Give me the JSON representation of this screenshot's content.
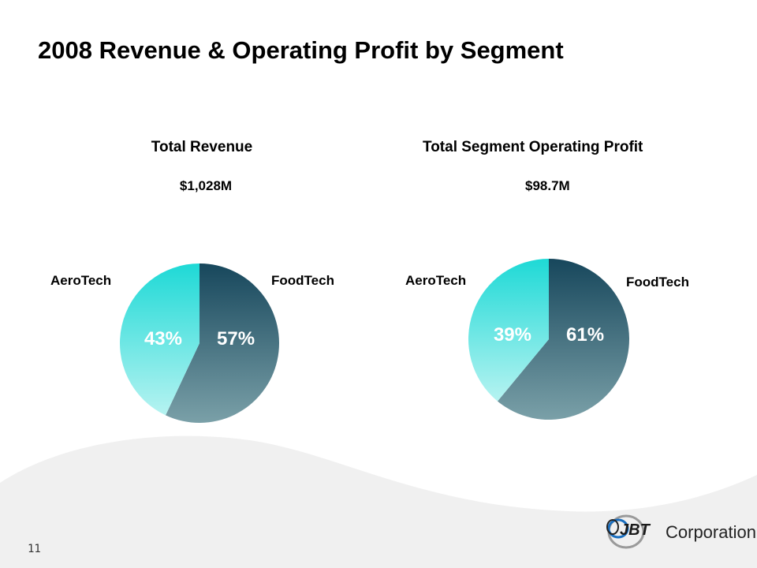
{
  "slide": {
    "title": "2008 Revenue & Operating Profit by Segment",
    "page_number": "11",
    "logo": {
      "mark": "JBT",
      "text": "Corporation"
    }
  },
  "colors": {
    "foodtech_top": "#17475c",
    "foodtech_bottom": "#7aa0a8",
    "aerotech_top": "#1ed9d6",
    "aerotech_bottom": "#b6f3f1",
    "background_wave": "#f0f0f0",
    "logo_blue": "#1a6fc0",
    "logo_gray": "#9a9a9a"
  },
  "chart_data": [
    {
      "type": "pie",
      "title": "Total Revenue",
      "total": "$1,028M",
      "categories": [
        "FoodTech",
        "AeroTech"
      ],
      "values": [
        57,
        43
      ],
      "value_labels": [
        "57%",
        "43%"
      ],
      "start": "12 o'clock, clockwise",
      "legend": "labels beside slices"
    },
    {
      "type": "pie",
      "title": "Total Segment Operating Profit",
      "total": "$98.7M",
      "categories": [
        "FoodTech",
        "AeroTech"
      ],
      "values": [
        61,
        39
      ],
      "value_labels": [
        "61%",
        "39%"
      ],
      "start": "12 o'clock, clockwise",
      "legend": "labels beside slices"
    }
  ]
}
